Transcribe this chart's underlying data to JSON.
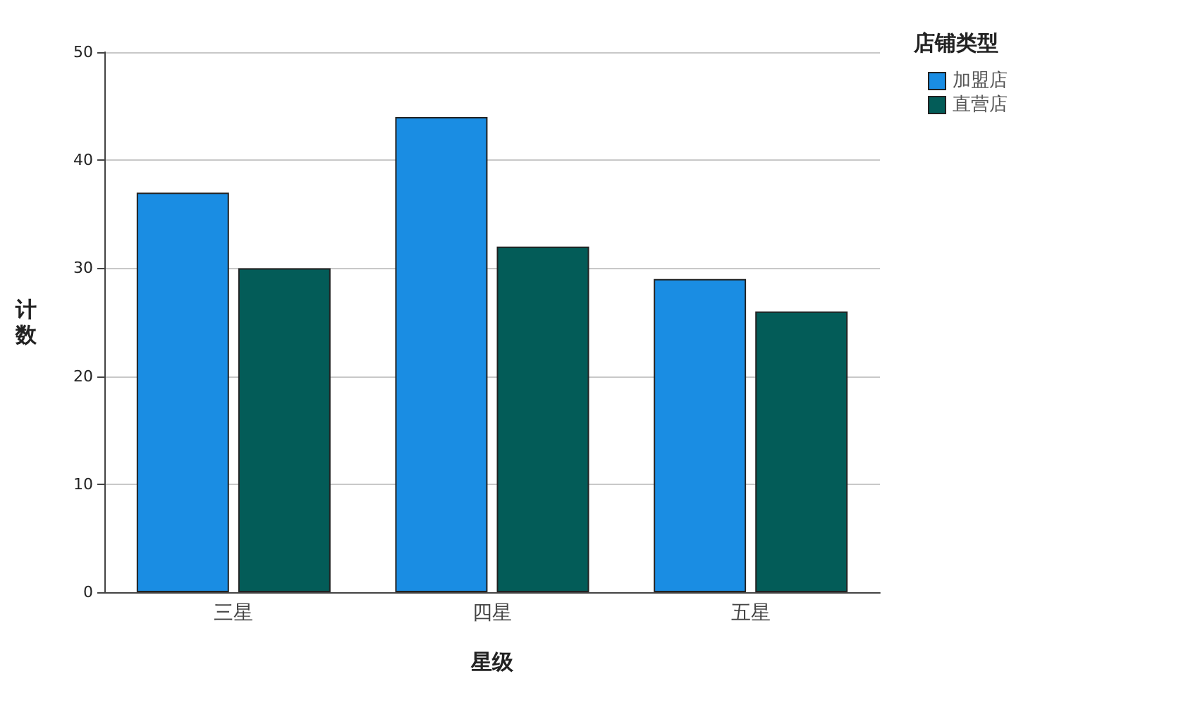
{
  "chart_data": {
    "type": "bar",
    "xlabel": "星级",
    "ylabel": "计数",
    "legend_title": "店铺类型",
    "categories": [
      "三星",
      "四星",
      "五星"
    ],
    "series": [
      {
        "name": "加盟店",
        "color": "#1a8de3",
        "values": [
          37,
          44,
          29
        ]
      },
      {
        "name": "直营店",
        "color": "#035c58",
        "values": [
          30,
          32,
          26
        ]
      }
    ],
    "ylim": [
      0,
      50
    ],
    "yticks": [
      0,
      10,
      20,
      30,
      40,
      50
    ],
    "grid": "y",
    "legend": "top right"
  }
}
